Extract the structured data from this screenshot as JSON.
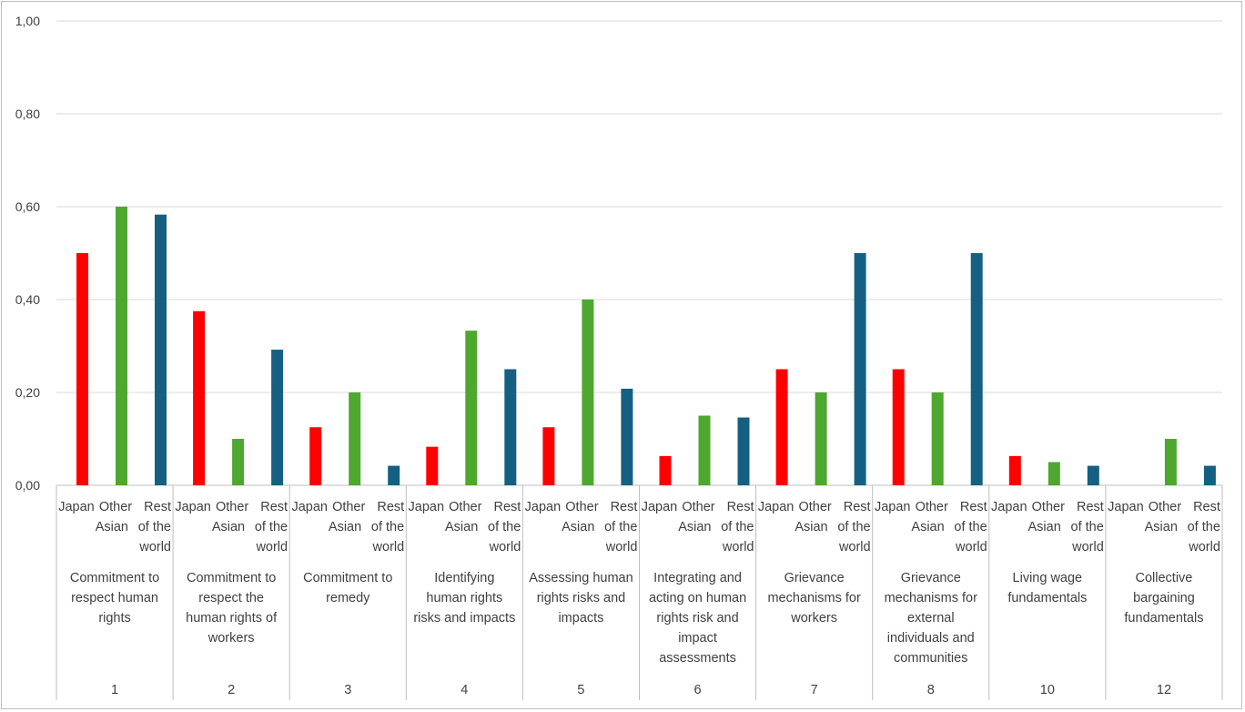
{
  "chart_data": {
    "type": "bar",
    "title": "",
    "xlabel": "",
    "ylabel": "",
    "ylim": [
      0,
      1
    ],
    "y_ticks": [
      "0,00",
      "0,20",
      "0,40",
      "0,60",
      "0,80",
      "1,00"
    ],
    "grid": true,
    "legend": "none",
    "series_labels": [
      [
        "Japan"
      ],
      [
        "Other",
        "Asian"
      ],
      [
        "Rest",
        "of the",
        "world"
      ]
    ],
    "series_colors": [
      "#ff0000",
      "#4ea72e",
      "#156082"
    ],
    "groups": [
      {
        "number": "1",
        "label": [
          "Commitment to",
          "respect human",
          "rights"
        ],
        "values": [
          0.5,
          0.6,
          0.583
        ]
      },
      {
        "number": "2",
        "label": [
          "Commitment to",
          "respect the",
          "human rights of",
          "workers"
        ],
        "values": [
          0.375,
          0.1,
          0.292
        ]
      },
      {
        "number": "3",
        "label": [
          "Commitment to",
          "remedy"
        ],
        "values": [
          0.125,
          0.2,
          0.042
        ]
      },
      {
        "number": "4",
        "label": [
          "Identifying",
          "human rights",
          "risks and impacts"
        ],
        "values": [
          0.083,
          0.333,
          0.25
        ]
      },
      {
        "number": "5",
        "label": [
          "Assessing human",
          "rights risks and",
          "impacts"
        ],
        "values": [
          0.125,
          0.4,
          0.208
        ]
      },
      {
        "number": "6",
        "label": [
          "Integrating and",
          "acting on human",
          "rights risk and",
          "impact",
          "assessments"
        ],
        "values": [
          0.063,
          0.15,
          0.146
        ]
      },
      {
        "number": "7",
        "label": [
          "Grievance",
          "mechanisms for",
          "workers"
        ],
        "values": [
          0.25,
          0.2,
          0.5
        ]
      },
      {
        "number": "8",
        "label": [
          "Grievance",
          "mechanisms for",
          "external",
          "individuals and",
          "communities"
        ],
        "values": [
          0.25,
          0.2,
          0.5
        ]
      },
      {
        "number": "10",
        "label": [
          "Living wage",
          "fundamentals"
        ],
        "values": [
          0.063,
          0.05,
          0.042
        ]
      },
      {
        "number": "12",
        "label": [
          "Collective",
          "bargaining",
          "fundamentals"
        ],
        "values": [
          0.0,
          0.1,
          0.042
        ]
      }
    ]
  }
}
